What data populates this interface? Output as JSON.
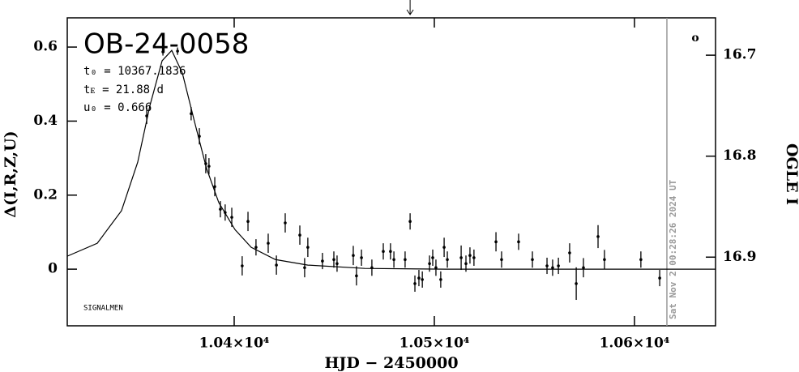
{
  "chart_data": {
    "type": "lightcurve",
    "title": "OB-24-0058",
    "params": [
      "t₀ = 10367.1836",
      "tᴇ = 21.88 d",
      "u₀ = 0.666"
    ],
    "xlabel": "HJD − 2450000",
    "ylabel": "Δ(I,R,Z,U)",
    "y2label": "OGLE I",
    "footnote": "SIGNALMEN",
    "corner_mark": "o",
    "xlim": [
      10316.6,
      10640.5
    ],
    "xticks": [
      {
        "value": 10400,
        "label": "1.04×10⁴"
      },
      {
        "value": 10500,
        "label": "1.05×10⁴"
      },
      {
        "value": 10600,
        "label": "1.06×10⁴"
      }
    ],
    "ylim": [
      -0.153,
      0.679
    ],
    "yticks": [
      0,
      0.2,
      0.4,
      0.6
    ],
    "y2lim": [
      16.968,
      16.663
    ],
    "y2ticks": [
      16.7,
      16.8,
      16.9
    ],
    "vline": {
      "x": 10616.2,
      "label": "Sat Nov  2 00:28:26 2024 UT",
      "color": "#999999"
    },
    "arrow_x": 10487.9,
    "series": [
      {
        "color": "#000000",
        "x": [
          10356.3,
          10364.4,
          10371.7,
          10378.5,
          10382.6,
          10385.8,
          10387.4,
          10390.3,
          10393.1,
          10395.5,
          10398.8,
          10404.0,
          10406.9,
          10410.9,
          10417.0,
          10421.1,
          10425.5,
          10432.8,
          10435.2,
          10436.8,
          10444.1,
          10449.8,
          10451.4,
          10459.5,
          10461.1,
          10463.6,
          10468.8,
          10474.5,
          10478.1,
          10479.8,
          10485.4,
          10487.9,
          10490.3,
          10492.3,
          10494.0,
          10497.6,
          10499.2,
          10500.8,
          10503.2,
          10504.9,
          10506.5,
          10513.4,
          10515.8,
          10517.8,
          10519.8,
          10530.8,
          10533.6,
          10542.1,
          10549.0,
          10556.3,
          10559.1,
          10562.0,
          10567.6,
          10570.9,
          10574.5,
          10581.8,
          10585.0,
          10603.2,
          10612.6
        ],
        "values": [
          0.414,
          0.587,
          0.589,
          0.42,
          0.359,
          0.285,
          0.278,
          0.223,
          0.162,
          0.153,
          0.14,
          0.009,
          0.129,
          0.059,
          0.07,
          0.011,
          0.125,
          0.092,
          0.004,
          0.059,
          0.022,
          0.026,
          0.015,
          0.037,
          -0.018,
          0.031,
          0.004,
          0.048,
          0.048,
          0.026,
          0.026,
          0.129,
          -0.039,
          -0.024,
          -0.028,
          0.015,
          0.031,
          0.004,
          -0.028,
          0.059,
          0.026,
          0.031,
          0.015,
          0.037,
          0.031,
          0.074,
          0.026,
          0.074,
          0.026,
          0.009,
          0.004,
          0.009,
          0.044,
          -0.039,
          0.004,
          0.088,
          0.026,
          0.026,
          -0.024
        ],
        "errors": [
          0.022,
          0.01,
          0.01,
          0.018,
          0.022,
          0.026,
          0.022,
          0.026,
          0.022,
          0.022,
          0.026,
          0.026,
          0.026,
          0.022,
          0.026,
          0.026,
          0.026,
          0.026,
          0.026,
          0.026,
          0.022,
          0.022,
          0.022,
          0.026,
          0.026,
          0.022,
          0.022,
          0.022,
          0.022,
          0.022,
          0.022,
          0.022,
          0.022,
          0.022,
          0.022,
          0.022,
          0.022,
          0.022,
          0.022,
          0.026,
          0.022,
          0.033,
          0.022,
          0.022,
          0.022,
          0.026,
          0.022,
          0.022,
          0.022,
          0.022,
          0.022,
          0.022,
          0.026,
          0.044,
          0.026,
          0.031,
          0.026,
          0.022,
          0.022
        ]
      },
      {
        "color": "#000000",
        "style": "line",
        "x": [
          10316.6,
          10331.6,
          10343.7,
          10351.8,
          10357.9,
          10364.0,
          10368.8,
          10374.1,
          10380.2,
          10386.2,
          10392.3,
          10400.4,
          10408.5,
          10420.6,
          10436.8,
          10465.2,
          10505.7,
          10640.5
        ],
        "values": [
          0.035,
          0.07,
          0.158,
          0.289,
          0.442,
          0.563,
          0.591,
          0.53,
          0.398,
          0.272,
          0.18,
          0.107,
          0.059,
          0.026,
          0.011,
          0.002,
          0,
          0
        ]
      }
    ]
  }
}
